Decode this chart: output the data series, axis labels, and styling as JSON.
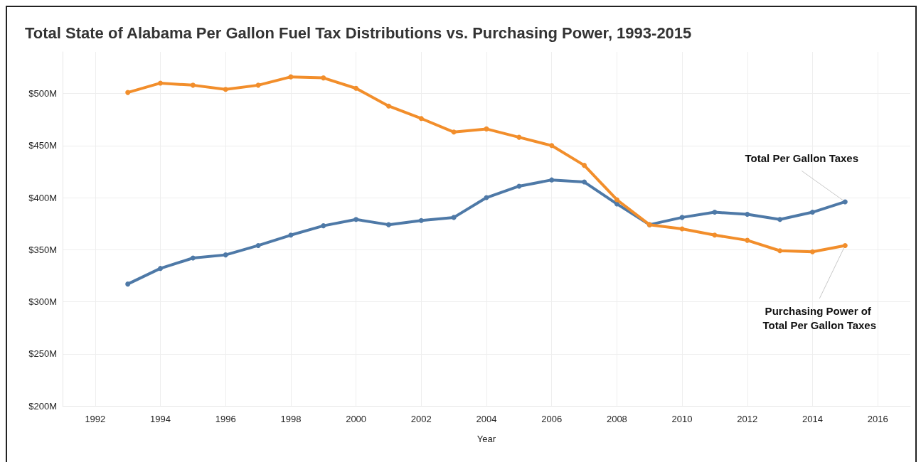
{
  "chart_data": {
    "type": "line",
    "title": "Total State of Alabama Per Gallon Fuel Tax Distributions vs. Purchasing Power, 1993-2015",
    "xlabel": "Year",
    "x": [
      1993,
      1994,
      1995,
      1996,
      1997,
      1998,
      1999,
      2000,
      2001,
      2002,
      2003,
      2004,
      2005,
      2006,
      2007,
      2008,
      2009,
      2010,
      2011,
      2012,
      2013,
      2014,
      2015
    ],
    "series": [
      {
        "name": "Total Per Gallon Taxes",
        "color": "#4e79a7",
        "values": [
          317,
          332,
          342,
          345,
          354,
          364,
          373,
          379,
          374,
          378,
          381,
          400,
          411,
          417,
          415,
          394,
          374,
          381,
          386,
          384,
          379,
          386,
          396
        ]
      },
      {
        "name": "Purchasing Power of Total Per Gallon Taxes",
        "color": "#f28e2b",
        "values": [
          501,
          510,
          508,
          504,
          508,
          516,
          515,
          505,
          488,
          476,
          463,
          466,
          458,
          450,
          431,
          398,
          374,
          370,
          364,
          359,
          349,
          348,
          354
        ]
      }
    ],
    "xlim": [
      1991,
      2017
    ],
    "xticks": [
      1992,
      1994,
      1996,
      1998,
      2000,
      2002,
      2004,
      2006,
      2008,
      2010,
      2012,
      2014,
      2016
    ],
    "ylim": [
      200,
      540
    ],
    "yticks": [
      {
        "value": 200,
        "label": "$200M"
      },
      {
        "value": 250,
        "label": "$250M"
      },
      {
        "value": 300,
        "label": "$300M"
      },
      {
        "value": 350,
        "label": "$350M"
      },
      {
        "value": 400,
        "label": "$400M"
      },
      {
        "value": 450,
        "label": "$450M"
      },
      {
        "value": 500,
        "label": "$500M"
      }
    ],
    "grid": true,
    "legend": false,
    "marker": "circle",
    "line_style": "solid"
  }
}
